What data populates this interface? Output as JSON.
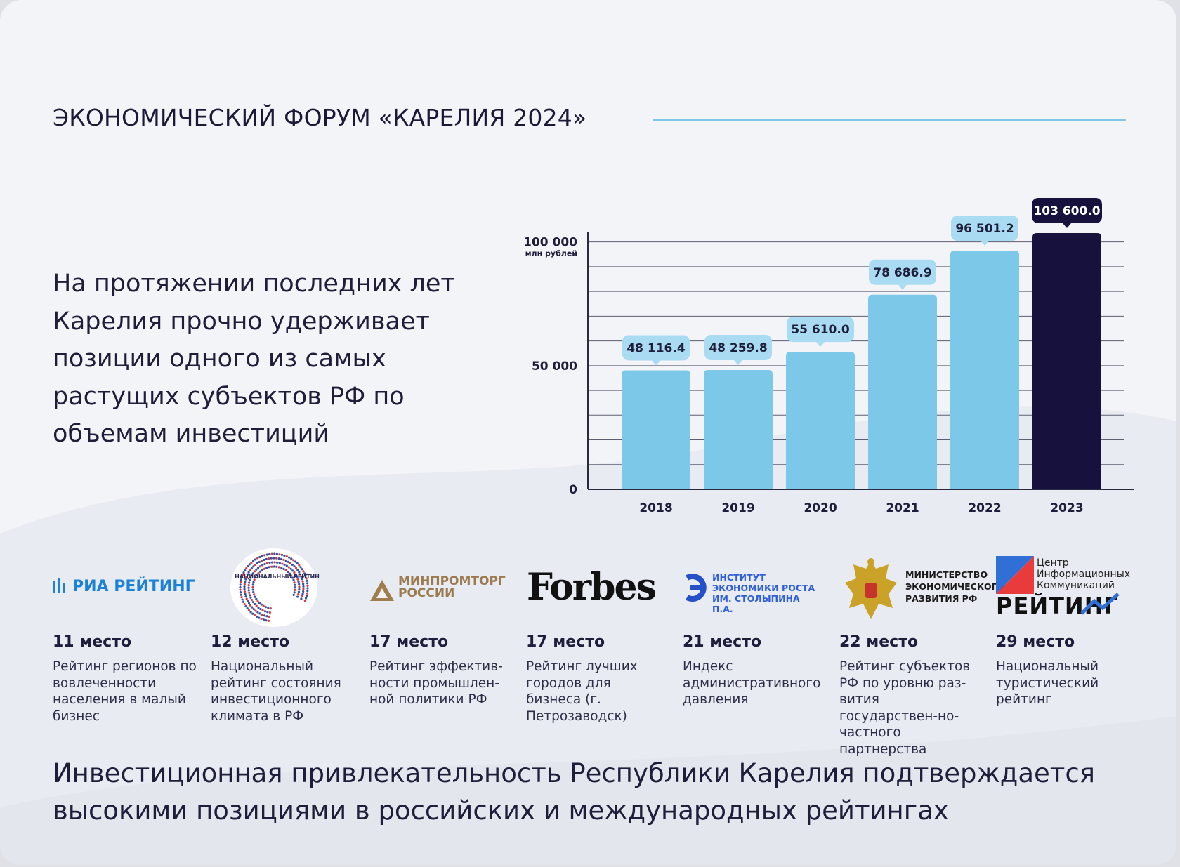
{
  "title": "ЭКОНОМИЧЕСКИЙ ФОРУМ «КАРЕЛИЯ 2024»",
  "intro_text": "На протяжении последних лет Карелия прочно удерживает позиции одного из самых растущих субъектов РФ по объемам инвестиций",
  "colors": {
    "bar": "#7cc8e8",
    "bar_highlight": "#16113d",
    "title_line": "#7cc6ea",
    "label_bg": "#a9dcf3",
    "text": "#1e1e3a"
  },
  "chart_data": {
    "type": "bar",
    "categories": [
      "2018",
      "2019",
      "2020",
      "2021",
      "2022",
      "2023"
    ],
    "values": [
      48116.4,
      48259.8,
      55610.0,
      78686.9,
      96501.2,
      103600.0
    ],
    "data_labels": [
      "48 116.4",
      "48 259.8",
      "55 610.0",
      "78 686.9",
      "96 501.2",
      "103 600.0"
    ],
    "highlight_index": 5,
    "y_ticks": [
      {
        "value": 0,
        "label": "0"
      },
      {
        "value": 50000,
        "label": "50 000"
      },
      {
        "value": 100000,
        "label": "100 000"
      }
    ],
    "y_unit": "млн рублей",
    "ylim": [
      0,
      103600
    ],
    "grid": true
  },
  "ratings": [
    {
      "logo": "РИА РЕЙТИНГ",
      "place": "11 место",
      "desc": "Рейтинг регионов по вовлеченности населения в малый бизнес"
    },
    {
      "logo": "НАЦИОНАЛЬНЫЙ РЕЙТИНГ",
      "logo_sub": "СОСТОЯНИЯ ИНВЕСТИЦИОННОГО КЛИМАТА В СУБЪЕКТАХ РФ",
      "place": "12 место",
      "desc": "Национальный рейтинг состояния инвестиционного климата в РФ"
    },
    {
      "logo": "МИНПРОМТОРГ РОССИИ",
      "place": "17 место",
      "desc": "Рейтинг эффектив-ности промышлен-ной политики РФ"
    },
    {
      "logo": "Forbes",
      "place": "17 место",
      "desc": "Рейтинг лучших городов для бизнеса (г. Петрозаводск)"
    },
    {
      "logo": "ИНСТИТУТ ЭКОНОМИКИ РОСТА ИМ. СТОЛЫПИНА П.А.",
      "place": "21 место",
      "desc": "Индекс административного давления"
    },
    {
      "logo": "МИНИСТЕРСТВО ЭКОНОМИЧЕСКОГО РАЗВИТИЯ РФ",
      "place": "22 место",
      "desc": "Рейтинг субъектов РФ по уровню раз-вития государствен-но-частного партнерства"
    },
    {
      "logo": "Центр Информационных Коммуникаций",
      "logo_sub": "РЕЙТИНГ",
      "place": "29 место",
      "desc": "Национальный туристический рейтинг"
    }
  ],
  "bottom_text": "Инвестиционная привлекательность Республики Карелия подтверждается высокими позициями в российских и международных рейтингах"
}
